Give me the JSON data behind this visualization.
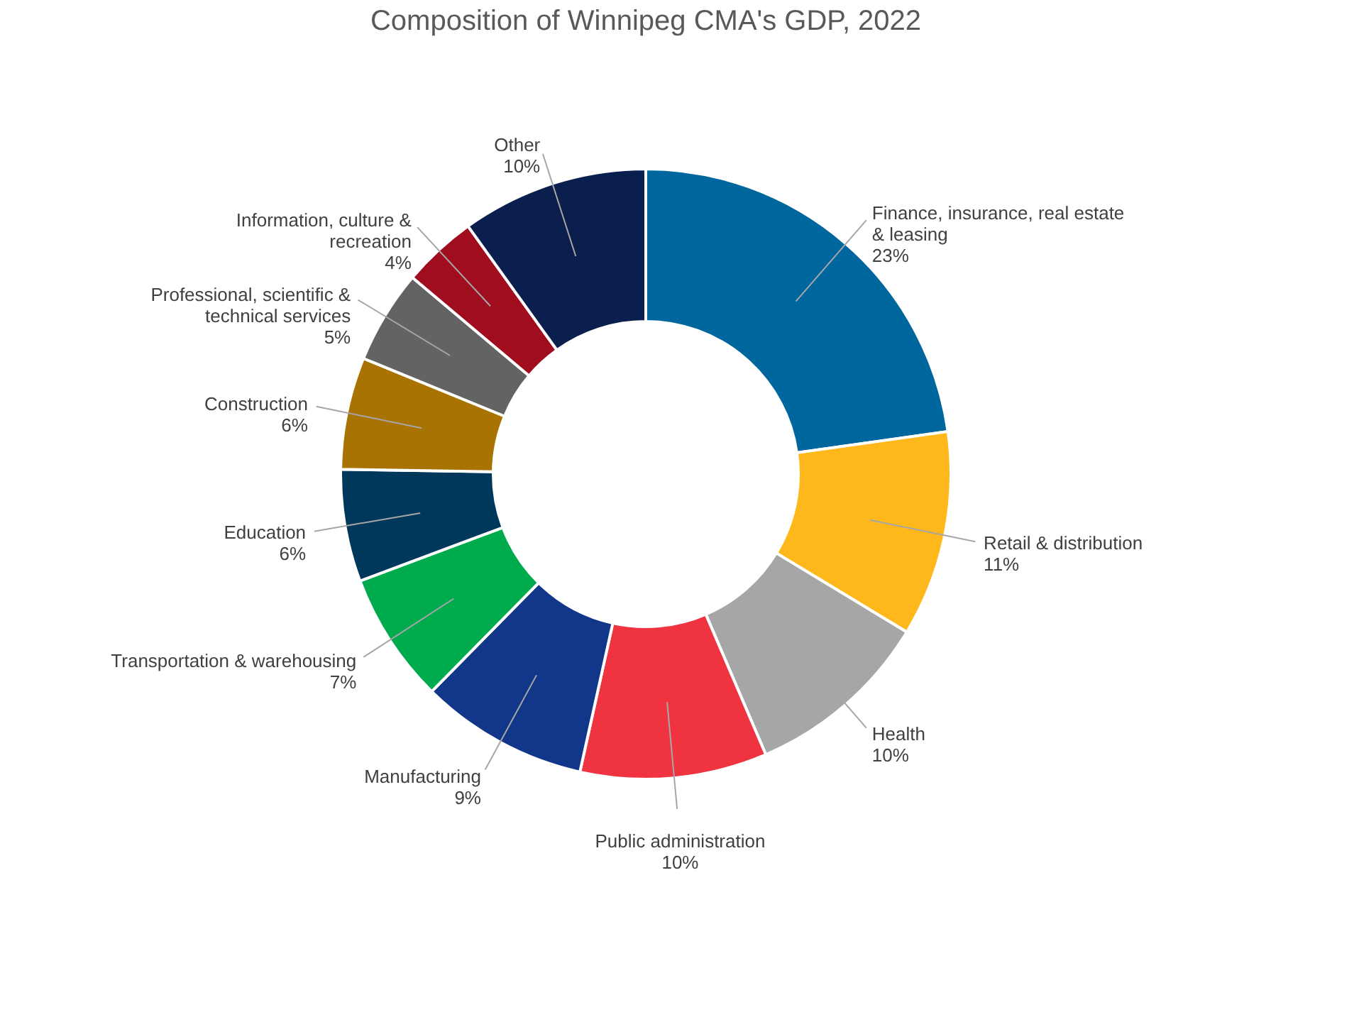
{
  "chart_data": {
    "type": "donut",
    "title": "Composition of Winnipeg CMA's GDP, 2022",
    "categories": [
      "Finance, insurance, real estate & leasing",
      "Retail & distribution",
      "Health",
      "Public administration",
      "Manufacturing",
      "Transportation & warehousing",
      "Education",
      "Construction",
      "Professional, scientific & technical services",
      "Information, culture & recreation",
      "Other"
    ],
    "values": [
      23,
      11,
      10,
      10,
      9,
      7,
      6,
      6,
      5,
      4,
      10
    ],
    "value_labels": [
      "23%",
      "11%",
      "10%",
      "10%",
      "9%",
      "7%",
      "6%",
      "6%",
      "5%",
      "4%",
      "10%"
    ],
    "colors": [
      "#00669e",
      "#ffb81c",
      "#a6a6a6",
      "#ef3340",
      "#12378a",
      "#00ab4e",
      "#00385c",
      "#a87300",
      "#636363",
      "#a00d1e",
      "#0b1f4f"
    ],
    "legend": false
  }
}
